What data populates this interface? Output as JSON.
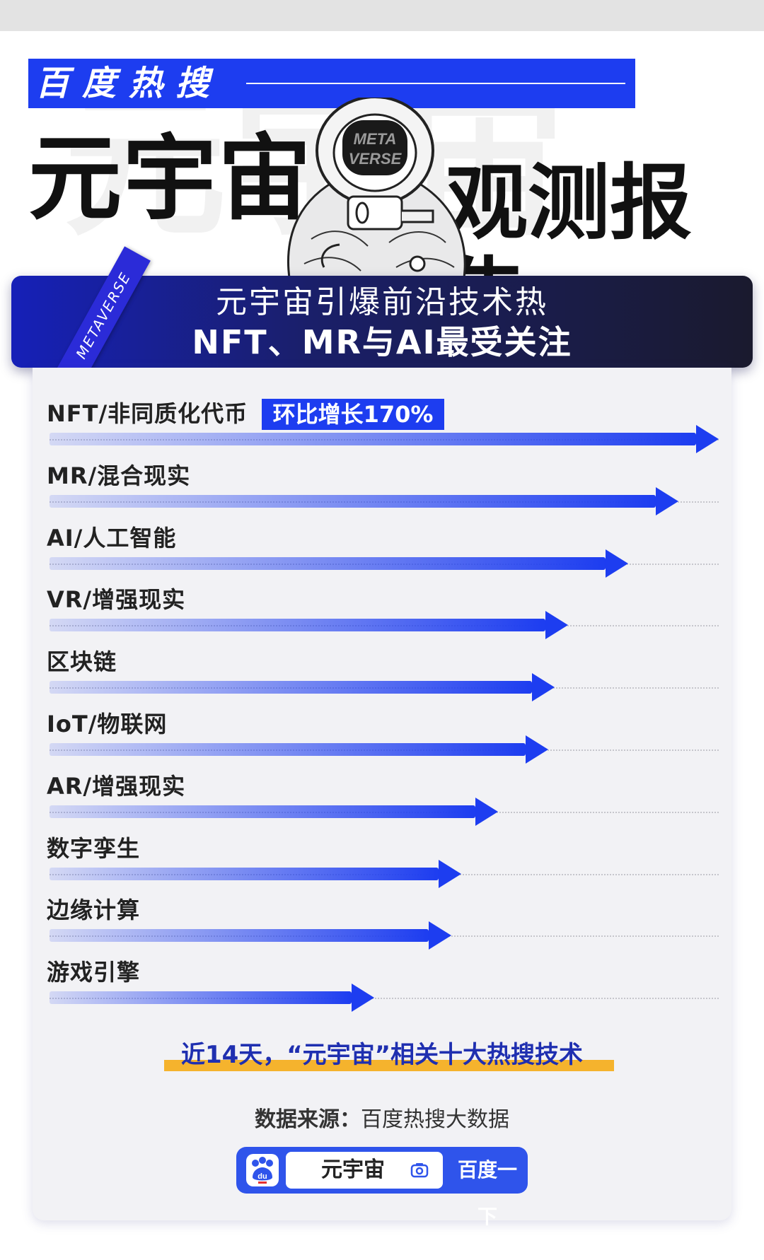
{
  "header": {
    "tag_title": "百度热搜",
    "title_left": "元宇宙",
    "title_right": "观测报告",
    "ghost_text": "元宇宙",
    "helmet_text_1": "META",
    "helmet_text_2": "VERSE"
  },
  "banner": {
    "corner_tag": "METAVERSE",
    "line1": "元宇宙引爆前沿技术热",
    "line2": "NFT、MR与AI最受关注"
  },
  "chart_data": {
    "type": "bar",
    "orientation": "horizontal",
    "categories": [
      "NFT/非同质化代币",
      "MR/混合现实",
      "AI/人工智能",
      "VR/增强现实",
      "区块链",
      "IoT/物联网",
      "AR/增强现实",
      "数字孪生",
      "边缘计算",
      "游戏引擎"
    ],
    "values": [
      100,
      94,
      86.5,
      77.5,
      75.5,
      74.5,
      67,
      61.5,
      60,
      48.5
    ],
    "xlim": [
      0,
      100
    ],
    "annotation": "环比增长170%",
    "accent_color": "#1d3df0"
  },
  "footer": {
    "caption": "近14天，“元宇宙”相关十大热搜技术",
    "source_label": "数据来源：",
    "source_value": "百度热搜大数据",
    "search_value": "元宇宙",
    "search_button": "百度一下",
    "logo_text": "du",
    "highlight_color": "#f5b32d"
  }
}
